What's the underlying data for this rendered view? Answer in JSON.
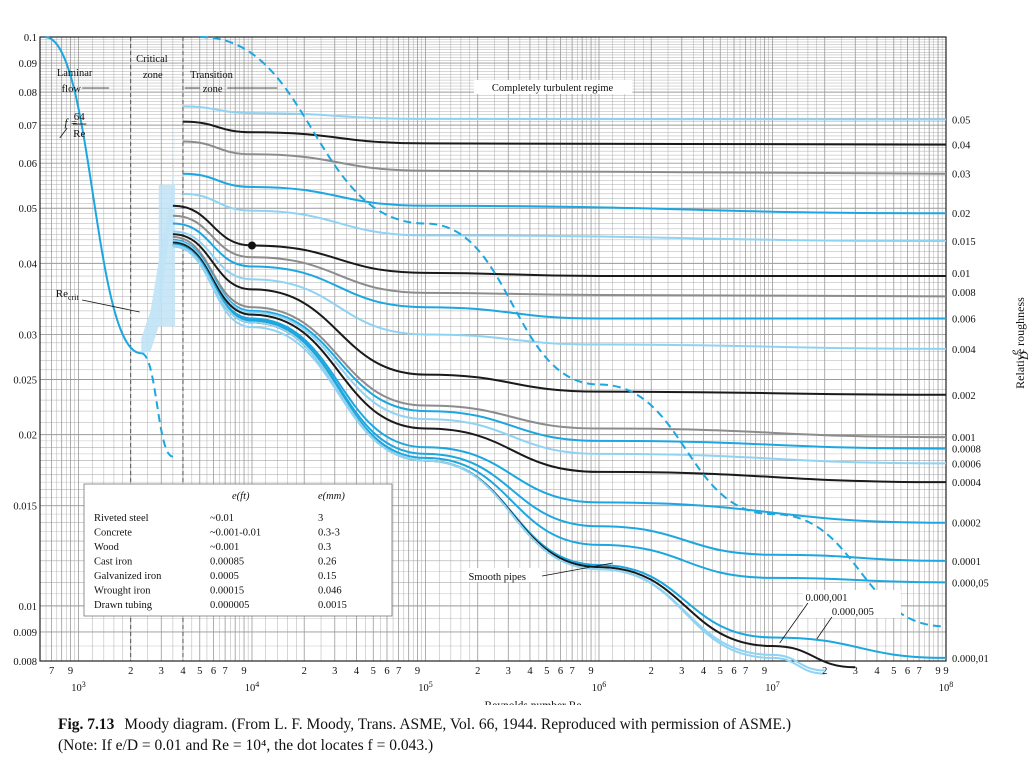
{
  "chart_data": {
    "type": "line",
    "title": "",
    "xlabel": "Reynolds number Re",
    "ylabel_right": "Relative roughness",
    "ylabel_right_symbol": "e/D",
    "xscale": "log",
    "yscale": "log",
    "xlim": [
      600,
      100000000
    ],
    "ylim": [
      0.008,
      0.1
    ],
    "grid": true,
    "x_decade_labels": [
      {
        "value": 1000,
        "base": "10",
        "exp": "3"
      },
      {
        "value": 10000,
        "base": "10",
        "exp": "4"
      },
      {
        "value": 100000,
        "base": "10",
        "exp": "5"
      },
      {
        "value": 1000000,
        "base": "10",
        "exp": "6"
      },
      {
        "value": 10000000,
        "base": "10",
        "exp": "7"
      },
      {
        "value": 100000000,
        "base": "10",
        "exp": "8"
      }
    ],
    "x_minor_labels": [
      "2",
      "3",
      "4",
      "5",
      "6",
      "7",
      "9"
    ],
    "y_ticks": [
      {
        "value": 0.1,
        "label": "0.1"
      },
      {
        "value": 0.09,
        "label": "0.09"
      },
      {
        "value": 0.08,
        "label": "0.08"
      },
      {
        "value": 0.07,
        "label": "0.07"
      },
      {
        "value": 0.06,
        "label": "0.06"
      },
      {
        "value": 0.05,
        "label": "0.05"
      },
      {
        "value": 0.04,
        "label": "0.04"
      },
      {
        "value": 0.03,
        "label": "0.03"
      },
      {
        "value": 0.025,
        "label": "0.025"
      },
      {
        "value": 0.02,
        "label": "0.02"
      },
      {
        "value": 0.015,
        "label": "0.015"
      },
      {
        "value": 0.01,
        "label": "0.01"
      },
      {
        "value": 0.009,
        "label": "0.009"
      },
      {
        "value": 0.008,
        "label": "0.008"
      }
    ],
    "series": [
      {
        "name": "0.05",
        "color": "#8fd3f3",
        "values": [
          {
            "x": 4000,
            "y": 0.0755
          },
          {
            "x": 10000,
            "y": 0.0735
          },
          {
            "x": 100000,
            "y": 0.0718
          },
          {
            "x": 100000000,
            "y": 0.0716
          }
        ]
      },
      {
        "name": "0.04",
        "color": "#1a1a1a",
        "values": [
          {
            "x": 4000,
            "y": 0.071
          },
          {
            "x": 10000,
            "y": 0.068
          },
          {
            "x": 100000,
            "y": 0.065
          },
          {
            "x": 100000000,
            "y": 0.0647
          }
        ]
      },
      {
        "name": "0.03",
        "color": "#8c8c8c",
        "values": [
          {
            "x": 4000,
            "y": 0.0655
          },
          {
            "x": 10000,
            "y": 0.0622
          },
          {
            "x": 100000,
            "y": 0.0582
          },
          {
            "x": 100000000,
            "y": 0.0575
          }
        ]
      },
      {
        "name": "0.02",
        "color": "#1ca7e0",
        "values": [
          {
            "x": 4000,
            "y": 0.0575
          },
          {
            "x": 10000,
            "y": 0.0545
          },
          {
            "x": 100000,
            "y": 0.0505
          },
          {
            "x": 100000000,
            "y": 0.049
          }
        ]
      },
      {
        "name": "0.015",
        "color": "#8fd3f3",
        "values": [
          {
            "x": 4000,
            "y": 0.053
          },
          {
            "x": 10000,
            "y": 0.0495
          },
          {
            "x": 100000,
            "y": 0.0448
          },
          {
            "x": 100000000,
            "y": 0.0438
          }
        ]
      },
      {
        "name": "0.01",
        "color": "#1a1a1a",
        "values": [
          {
            "x": 3500,
            "y": 0.0505
          },
          {
            "x": 10000,
            "y": 0.043
          },
          {
            "x": 100000,
            "y": 0.0385
          },
          {
            "x": 1000000,
            "y": 0.038
          },
          {
            "x": 100000000,
            "y": 0.038
          }
        ]
      },
      {
        "name": "0.008",
        "color": "#8c8c8c",
        "values": [
          {
            "x": 3500,
            "y": 0.0485
          },
          {
            "x": 10000,
            "y": 0.041
          },
          {
            "x": 100000,
            "y": 0.0355
          },
          {
            "x": 1000000,
            "y": 0.0352
          },
          {
            "x": 100000000,
            "y": 0.035
          }
        ]
      },
      {
        "name": "0.006",
        "color": "#1ca7e0",
        "values": [
          {
            "x": 3500,
            "y": 0.047
          },
          {
            "x": 10000,
            "y": 0.0395
          },
          {
            "x": 100000,
            "y": 0.0335
          },
          {
            "x": 1000000,
            "y": 0.032
          },
          {
            "x": 100000000,
            "y": 0.032
          }
        ]
      },
      {
        "name": "0.004",
        "color": "#8fd3f3",
        "values": [
          {
            "x": 3500,
            "y": 0.0455
          },
          {
            "x": 10000,
            "y": 0.0375
          },
          {
            "x": 100000,
            "y": 0.03
          },
          {
            "x": 1000000,
            "y": 0.0288
          },
          {
            "x": 100000000,
            "y": 0.0283
          }
        ]
      },
      {
        "name": "0.002",
        "color": "#1a1a1a",
        "values": [
          {
            "x": 3500,
            "y": 0.045
          },
          {
            "x": 10000,
            "y": 0.036
          },
          {
            "x": 100000,
            "y": 0.0255
          },
          {
            "x": 1000000,
            "y": 0.0238
          },
          {
            "x": 100000000,
            "y": 0.0235
          }
        ]
      },
      {
        "name": "0.001",
        "color": "#8c8c8c",
        "values": [
          {
            "x": 3500,
            "y": 0.0445
          },
          {
            "x": 10000,
            "y": 0.0335
          },
          {
            "x": 100000,
            "y": 0.0225
          },
          {
            "x": 1000000,
            "y": 0.0205
          },
          {
            "x": 100000000,
            "y": 0.0198
          }
        ]
      },
      {
        "name": "0.0008",
        "color": "#1ca7e0",
        "values": [
          {
            "x": 3500,
            "y": 0.044
          },
          {
            "x": 10000,
            "y": 0.033
          },
          {
            "x": 100000,
            "y": 0.022
          },
          {
            "x": 1000000,
            "y": 0.0195
          },
          {
            "x": 100000000,
            "y": 0.0189
          }
        ]
      },
      {
        "name": "0.0006",
        "color": "#8fd3f3",
        "values": [
          {
            "x": 3500,
            "y": 0.0438
          },
          {
            "x": 10000,
            "y": 0.0328
          },
          {
            "x": 100000,
            "y": 0.0213
          },
          {
            "x": 1000000,
            "y": 0.0185
          },
          {
            "x": 100000000,
            "y": 0.0178
          }
        ]
      },
      {
        "name": "0.0004",
        "color": "#1a1a1a",
        "values": [
          {
            "x": 3500,
            "y": 0.0435
          },
          {
            "x": 10000,
            "y": 0.0325
          },
          {
            "x": 100000,
            "y": 0.0205
          },
          {
            "x": 1000000,
            "y": 0.0172
          },
          {
            "x": 100000000,
            "y": 0.0165
          }
        ]
      },
      {
        "name": "0.0002",
        "color": "#1ca7e0",
        "values": [
          {
            "x": 3500,
            "y": 0.0432
          },
          {
            "x": 10000,
            "y": 0.032
          },
          {
            "x": 100000,
            "y": 0.019
          },
          {
            "x": 1000000,
            "y": 0.0152
          },
          {
            "x": 100000000,
            "y": 0.014
          }
        ]
      },
      {
        "name": "0.0001",
        "color": "#1ca7e0",
        "values": [
          {
            "x": 3500,
            "y": 0.0432
          },
          {
            "x": 10000,
            "y": 0.0318
          },
          {
            "x": 100000,
            "y": 0.0185
          },
          {
            "x": 1000000,
            "y": 0.0138
          },
          {
            "x": 10000000,
            "y": 0.0123
          },
          {
            "x": 100000000,
            "y": 0.012
          }
        ]
      },
      {
        "name": "0.000,05",
        "color": "#1ca7e0",
        "values": [
          {
            "x": 3500,
            "y": 0.043
          },
          {
            "x": 10000,
            "y": 0.0316
          },
          {
            "x": 100000,
            "y": 0.0182
          },
          {
            "x": 1000000,
            "y": 0.0128
          },
          {
            "x": 10000000,
            "y": 0.0112
          },
          {
            "x": 100000000,
            "y": 0.011
          }
        ]
      },
      {
        "name": "0.000,01",
        "color": "#1ca7e0",
        "values": [
          {
            "x": 3500,
            "y": 0.043
          },
          {
            "x": 10000,
            "y": 0.0315
          },
          {
            "x": 100000,
            "y": 0.018
          },
          {
            "x": 1000000,
            "y": 0.0118
          },
          {
            "x": 10000000,
            "y": 0.0088
          },
          {
            "x": 100000000,
            "y": 0.0081
          }
        ]
      },
      {
        "name": "0.000,005",
        "color": "#1a1a1a",
        "values": [
          {
            "x": 3500,
            "y": 0.043
          },
          {
            "x": 10000,
            "y": 0.0315
          },
          {
            "x": 100000,
            "y": 0.018
          },
          {
            "x": 1000000,
            "y": 0.0117
          },
          {
            "x": 10000000,
            "y": 0.0085
          },
          {
            "x": 30000000,
            "y": 0.0078
          }
        ]
      },
      {
        "name": "0.000,001",
        "color": "#8fd3f3",
        "values": [
          {
            "x": 3500,
            "y": 0.043
          },
          {
            "x": 10000,
            "y": 0.0315
          },
          {
            "x": 100000,
            "y": 0.018
          },
          {
            "x": 1000000,
            "y": 0.0116
          },
          {
            "x": 10000000,
            "y": 0.0082
          },
          {
            "x": 20000000,
            "y": 0.0077
          }
        ]
      },
      {
        "name": "Smooth pipes",
        "color": "#8fd3f3",
        "values": [
          {
            "x": 3500,
            "y": 0.0428
          },
          {
            "x": 10000,
            "y": 0.0309
          },
          {
            "x": 100000,
            "y": 0.018
          },
          {
            "x": 1000000,
            "y": 0.0116
          },
          {
            "x": 10000000,
            "y": 0.0081
          },
          {
            "x": 20000000,
            "y": 0.0076
          }
        ]
      },
      {
        "name": "f = 64/Re",
        "color": "#1ca7e0",
        "values": [
          {
            "x": 640,
            "y": 0.1
          },
          {
            "x": 2300,
            "y": 0.0278
          }
        ]
      },
      {
        "name": "f = 64/Re (extension)",
        "color": "#1ca7e0",
        "dashed": true,
        "values": [
          {
            "x": 2300,
            "y": 0.0278
          },
          {
            "x": 3500,
            "y": 0.0183
          }
        ]
      },
      {
        "name": "Completely turbulent boundary",
        "color": "#1ca7e0",
        "dashed": true,
        "values": [
          {
            "x": 5000,
            "y": 0.1
          },
          {
            "x": 100000,
            "y": 0.047
          },
          {
            "x": 1000000,
            "y": 0.0245
          },
          {
            "x": 10000000,
            "y": 0.0145
          },
          {
            "x": 100000000,
            "y": 0.0092
          }
        ]
      }
    ],
    "example_point": {
      "x": 10000,
      "y": 0.043
    },
    "annotations": {
      "laminar": [
        "Laminar",
        "flow"
      ],
      "critical": [
        "Critical",
        "zone"
      ],
      "transition": [
        "Transition",
        "zone"
      ],
      "turbulent": "Completely turbulent regime",
      "laminar_eq": {
        "f": "f =",
        "num": "64",
        "den": "Re"
      },
      "recrit_main": "Re",
      "recrit_sub": "crit",
      "smooth": "Smooth pipes",
      "fine_labels": [
        "0.000,001",
        "0.000,005"
      ]
    },
    "roughness_table": {
      "headers": [
        "",
        "e(ft)",
        "e(mm)"
      ],
      "rows": [
        [
          "Riveted steel",
          "~0.01",
          "3"
        ],
        [
          "Concrete",
          "~0.001-0.01",
          "0.3-3"
        ],
        [
          "Wood",
          "~0.001",
          "0.3"
        ],
        [
          "Cast iron",
          "0.00085",
          "0.26"
        ],
        [
          "Galvanized iron",
          "0.0005",
          "0.15"
        ],
        [
          "Wrought iron",
          "0.00015",
          "0.046"
        ],
        [
          "Drawn tubing",
          "0.000005",
          "0.0015"
        ]
      ]
    }
  },
  "caption": {
    "label": "Fig. 7.13",
    "text": "Moody diagram. (From L. F. Moody, Trans. ASME, Vol. 66, 1944. Reproduced with permission of ASME.)",
    "note": "(Note: If e/D = 0.01 and Re = 10⁴, the dot locates f = 0.043.)"
  },
  "colors": {
    "accent": "#1ca7e0",
    "light": "#8fd3f3",
    "dark": "#1a1a1a",
    "gray": "#8c8c8c",
    "critical_band": "#bfe3f6"
  }
}
